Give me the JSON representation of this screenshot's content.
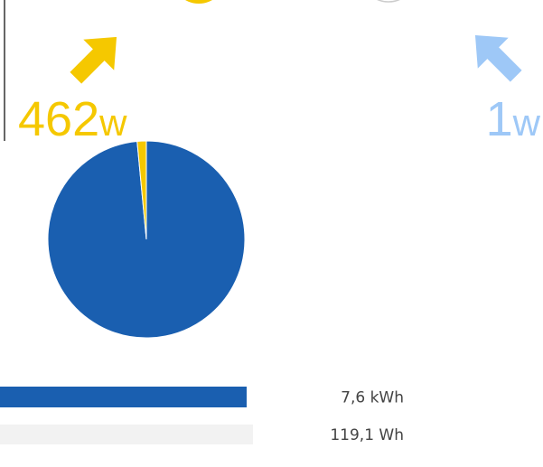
{
  "power": {
    "solar": {
      "value": "462",
      "unit": "w",
      "color": "#f5c800"
    },
    "grid": {
      "value": "1",
      "unit": "w",
      "color": "#9ec8f7"
    }
  },
  "pie": {
    "type": "pie",
    "values": [
      98.5,
      1.5
    ],
    "colors": [
      "#1a5fb0",
      "#f5c800"
    ]
  },
  "bars": [
    {
      "label": "7,6 kWh",
      "color": "#1a5fb0"
    },
    {
      "label": "119,1 Wh",
      "color": "#f2f2f2"
    }
  ]
}
